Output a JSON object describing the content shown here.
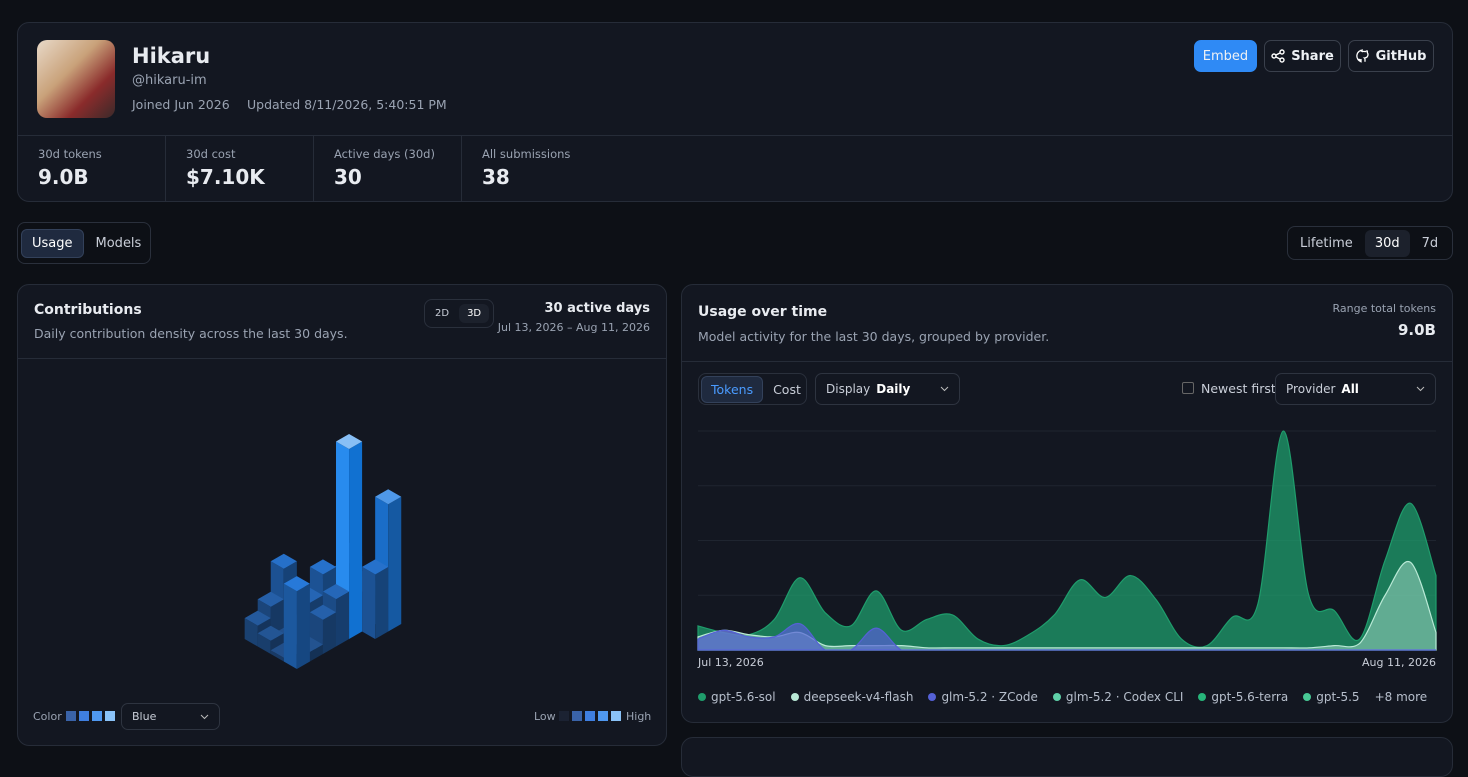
{
  "profile": {
    "name": "Hikaru",
    "handle": "@hikaru-im",
    "joined": "Joined Jun 2026",
    "updated": "Updated 8/11/2026, 5:40:51 PM"
  },
  "actions": [
    "Embed",
    "Share",
    "GitHub"
  ],
  "stats": [
    {
      "label": "30d tokens",
      "value": "9.0B"
    },
    {
      "label": "30d cost",
      "value": "$7.10K"
    },
    {
      "label": "Active days (30d)",
      "value": "30"
    },
    {
      "label": "All submissions",
      "value": "38"
    }
  ],
  "tabs": [
    "Usage",
    "Models"
  ],
  "ranges": [
    "Lifetime",
    "30d",
    "7d"
  ],
  "contributions": {
    "title": "Contributions",
    "subtitle": "Daily contribution density across the last 30 days.",
    "views": [
      "2D",
      "3D"
    ],
    "active_days": "30 active days",
    "date_range": "Jul 13, 2026 – Aug 11, 2026",
    "color_label": "Color",
    "color_value": "Blue",
    "low": "Low",
    "high": "High",
    "chart_data": {
      "type": "bar3d",
      "values": [
        11,
        8,
        7,
        14,
        33,
        17,
        11,
        27,
        9,
        14,
        16,
        5,
        2,
        7,
        16,
        32,
        24,
        34,
        23,
        5,
        2,
        15,
        21,
        100,
        25,
        18,
        5,
        41,
        67,
        34
      ]
    }
  },
  "usage": {
    "title": "Usage over time",
    "subtitle": "Model activity for the last 30 days, grouped by provider.",
    "total_label": "Range total tokens",
    "total": "9.0B",
    "metric_tabs": [
      "Tokens",
      "Cost"
    ],
    "display_label": "Display",
    "display_value": "Daily",
    "newest_first": "Newest first",
    "provider_label": "Provider",
    "provider_value": "All",
    "more": "+8 more",
    "chart_data": {
      "type": "area",
      "ylim": [
        0,
        100
      ],
      "x": [
        "Jul 13, 2026",
        null,
        null,
        null,
        null,
        null,
        null,
        null,
        null,
        null,
        null,
        null,
        null,
        null,
        null,
        null,
        null,
        null,
        null,
        null,
        null,
        null,
        null,
        null,
        null,
        null,
        null,
        null,
        null,
        "Aug 11, 2026"
      ],
      "series": [
        {
          "name": "gpt-5.6-sol",
          "color": "#1f9d6c",
          "values": [
            11,
            8,
            7,
            14,
            33,
            17,
            11,
            27,
            9,
            14,
            16,
            5,
            2,
            7,
            16,
            32,
            24,
            34,
            23,
            5,
            2,
            15,
            21,
            100,
            25,
            18,
            5,
            41,
            67,
            34
          ]
        },
        {
          "name": "deepseek-v4-flash",
          "color": "#b9e9d6",
          "values": [
            6,
            9,
            7,
            6,
            8,
            2,
            2,
            2,
            2,
            1,
            1,
            1,
            1,
            1,
            1,
            1,
            1,
            1,
            1,
            1,
            1,
            1,
            1,
            1,
            1,
            2,
            3,
            25,
            40,
            8
          ]
        },
        {
          "name": "glm-5.2 · ZCode",
          "color": "#5561d6",
          "values": [
            5,
            9,
            6,
            6,
            12,
            0,
            0,
            10,
            0,
            0,
            0,
            0,
            0,
            0,
            0,
            0,
            0,
            0,
            0,
            0,
            0,
            0,
            0,
            0,
            0,
            0,
            0,
            0,
            0,
            0
          ]
        },
        {
          "name": "glm-5.2 · Codex CLI",
          "color": "#5fd0a8"
        },
        {
          "name": "gpt-5.6-terra",
          "color": "#27b57a"
        },
        {
          "name": "gpt-5.5",
          "color": "#48c995"
        }
      ]
    }
  }
}
